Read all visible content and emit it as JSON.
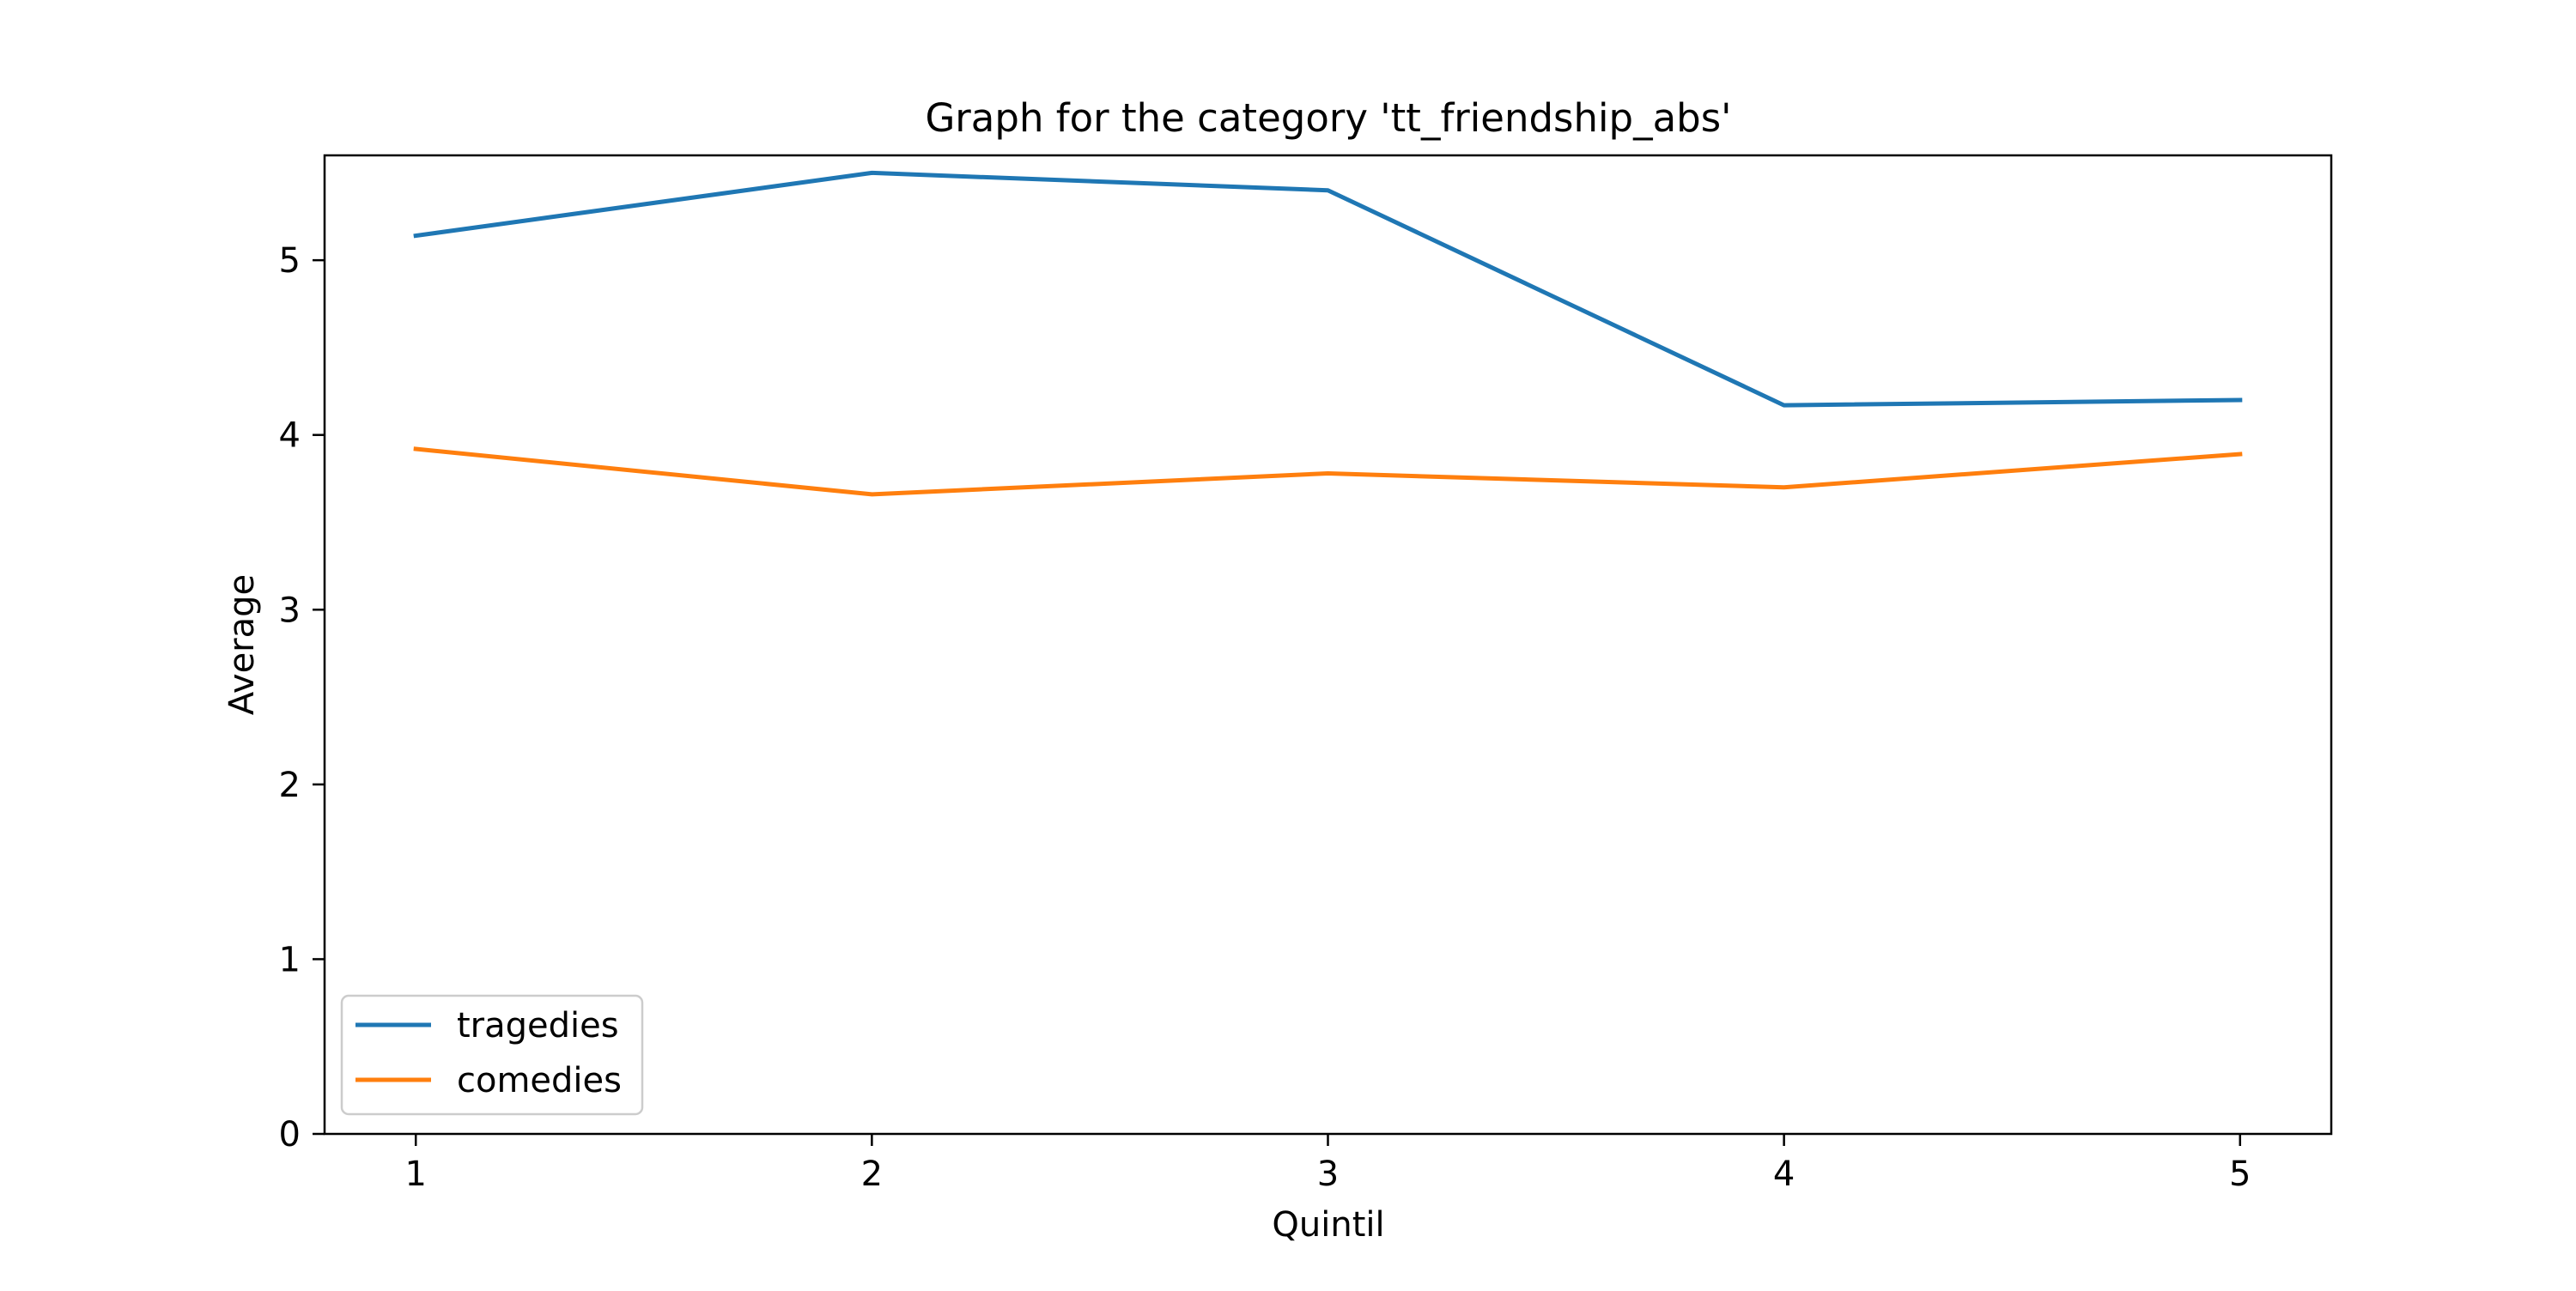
{
  "chart_data": {
    "type": "line",
    "title": "Graph for the category  'tt_friendship_abs'",
    "xlabel": "Quintil",
    "ylabel": "Average",
    "x": [
      1,
      2,
      3,
      4,
      5
    ],
    "xlim": [
      0.8,
      5.2
    ],
    "ylim": [
      0,
      5.6
    ],
    "xticks": [
      1,
      2,
      3,
      4,
      5
    ],
    "yticks": [
      0,
      1,
      2,
      3,
      4,
      5
    ],
    "grid": false,
    "legend_position": "lower-left",
    "series": [
      {
        "name": "tragedies",
        "color": "#1f77b4",
        "values": [
          5.14,
          5.5,
          5.4,
          4.17,
          4.2
        ]
      },
      {
        "name": "comedies",
        "color": "#ff7f0e",
        "values": [
          3.92,
          3.66,
          3.78,
          3.7,
          3.89
        ]
      }
    ]
  }
}
